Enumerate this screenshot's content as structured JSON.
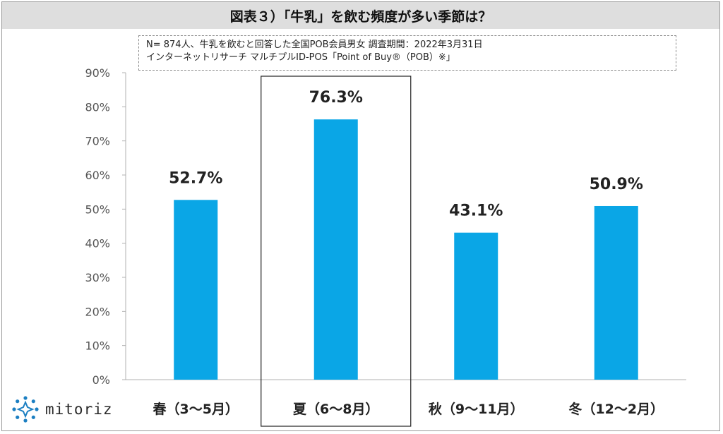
{
  "title": "図表３）「牛乳」を飲む頻度が多い季節は？",
  "note": {
    "line1": "N= 874人、牛乳を飲むと回答した全国POB会員男女 調査期間：2022年3月31日",
    "line2": "インターネットリサーチ マルチプルID-POS「Point of Buy®（POB）※」"
  },
  "logo": {
    "text": "mitoriz",
    "icon": "mitoriz-logo-icon"
  },
  "colors": {
    "bar": "#0aa6e6",
    "axis": "#b0b0b0",
    "tick_text": "#555555",
    "highlight_border": "#222222"
  },
  "chart_data": {
    "type": "bar",
    "categories": [
      "春（3〜5月）",
      "夏（6〜8月）",
      "秋（9〜11月）",
      "冬（12〜2月）"
    ],
    "values": [
      52.7,
      76.3,
      43.1,
      50.9
    ],
    "value_labels": [
      "52.7%",
      "76.3%",
      "43.1%",
      "50.9%"
    ],
    "y_ticks": [
      "0%",
      "10%",
      "20%",
      "30%",
      "40%",
      "50%",
      "60%",
      "70%",
      "80%",
      "90%"
    ],
    "ylim": [
      0,
      90
    ],
    "highlighted_category": "夏（6〜8月）",
    "xlabel": "",
    "ylabel": "",
    "grid": false,
    "legend": "none"
  }
}
